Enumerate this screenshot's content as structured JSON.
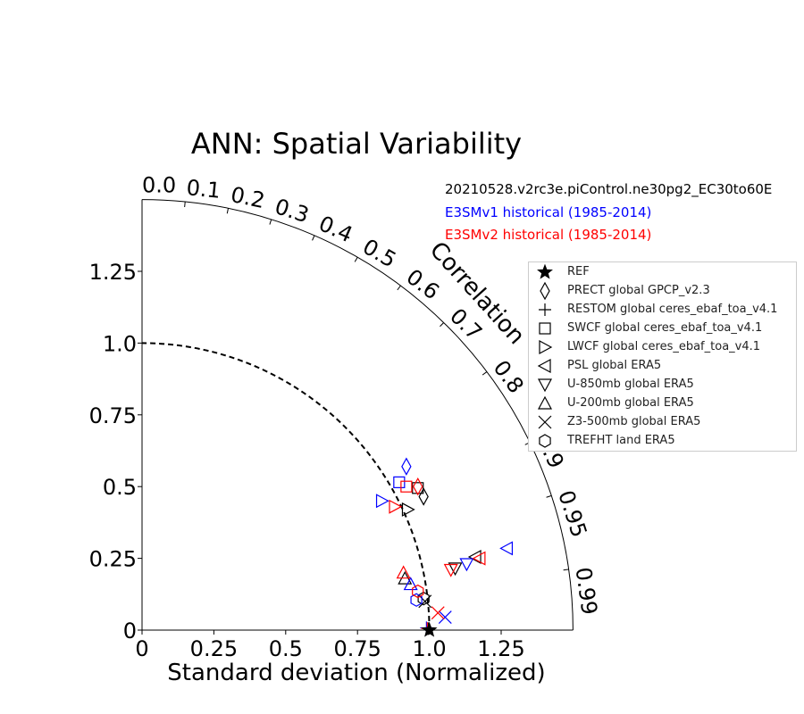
{
  "chart_data": {
    "type": "scatter",
    "subtype": "taylor-diagram",
    "title": "ANN: Spatial Variability",
    "xlabel": "Standard deviation (Normalized)",
    "correlation_label": "Correlation",
    "std_range": [
      0,
      1.5
    ],
    "std_ticks": [
      "0",
      "0.25",
      "0.5",
      "0.75",
      "1.0",
      "1.25"
    ],
    "correlation_ticks": [
      "0.0",
      "0.1",
      "0.2",
      "0.3",
      "0.4",
      "0.5",
      "0.6",
      "0.7",
      "0.8",
      "0.9",
      "0.95",
      "0.99"
    ],
    "reference_std": 1.0,
    "run_labels": [
      {
        "text": "20210528.v2rc3e.piControl.ne30pg2_EC30to60E",
        "color": "#000000"
      },
      {
        "text": "E3SMv1 historical (1985-2014)",
        "color": "#0000ff"
      },
      {
        "text": "E3SMv2 historical (1985-2014)",
        "color": "#ff0000"
      }
    ],
    "legend": [
      {
        "label": "REF",
        "marker": "star"
      },
      {
        "label": "PRECT global GPCP_v2.3",
        "marker": "diamond"
      },
      {
        "label": "RESTOM global ceres_ebaf_toa_v4.1",
        "marker": "plus"
      },
      {
        "label": "SWCF global ceres_ebaf_toa_v4.1",
        "marker": "square"
      },
      {
        "label": "LWCF global ceres_ebaf_toa_v4.1",
        "marker": "triangle-right"
      },
      {
        "label": "PSL global ERA5",
        "marker": "triangle-left"
      },
      {
        "label": "U-850mb global ERA5",
        "marker": "triangle-down"
      },
      {
        "label": "U-200mb global ERA5",
        "marker": "triangle-up"
      },
      {
        "label": "Z3-500mb global ERA5",
        "marker": "x"
      },
      {
        "label": "TREFHT land ERA5",
        "marker": "hexagon"
      }
    ],
    "series": [
      {
        "color": "#000000",
        "points": [
          {
            "variable": "PRECT global GPCP_v2.3",
            "marker": "diamond",
            "std_x": 0.98,
            "std_y": 0.465
          },
          {
            "variable": "RESTOM global ceres_ebaf_toa_v4.1",
            "marker": "plus",
            "std_x": 0.997,
            "std_y": 0.005
          },
          {
            "variable": "SWCF global ceres_ebaf_toa_v4.1",
            "marker": "square",
            "std_x": 0.96,
            "std_y": 0.495
          },
          {
            "variable": "LWCF global ceres_ebaf_toa_v4.1",
            "marker": "triangle-right",
            "std_x": 0.925,
            "std_y": 0.42
          },
          {
            "variable": "PSL global ERA5",
            "marker": "triangle-left",
            "std_x": 1.16,
            "std_y": 0.255
          },
          {
            "variable": "U-850mb global ERA5",
            "marker": "triangle-down",
            "std_x": 1.09,
            "std_y": 0.215
          },
          {
            "variable": "U-200mb global ERA5",
            "marker": "triangle-up",
            "std_x": 0.915,
            "std_y": 0.18
          },
          {
            "variable": "Z3-500mb global ERA5",
            "marker": "x",
            "std_x": 0.985,
            "std_y": 0.1
          },
          {
            "variable": "TREFHT land ERA5",
            "marker": "hexagon",
            "std_x": 0.98,
            "std_y": 0.11
          }
        ]
      },
      {
        "color": "#0000ff",
        "points": [
          {
            "variable": "PRECT global GPCP_v2.3",
            "marker": "diamond",
            "std_x": 0.92,
            "std_y": 0.57
          },
          {
            "variable": "RESTOM global ceres_ebaf_toa_v4.1",
            "marker": "plus",
            "std_x": 0.99,
            "std_y": 0.008
          },
          {
            "variable": "SWCF global ceres_ebaf_toa_v4.1",
            "marker": "square",
            "std_x": 0.895,
            "std_y": 0.515
          },
          {
            "variable": "LWCF global ceres_ebaf_toa_v4.1",
            "marker": "triangle-right",
            "std_x": 0.835,
            "std_y": 0.45
          },
          {
            "variable": "PSL global ERA5",
            "marker": "triangle-left",
            "std_x": 1.27,
            "std_y": 0.285
          },
          {
            "variable": "U-850mb global ERA5",
            "marker": "triangle-down",
            "std_x": 1.13,
            "std_y": 0.23
          },
          {
            "variable": "U-200mb global ERA5",
            "marker": "triangle-up",
            "std_x": 0.935,
            "std_y": 0.16
          },
          {
            "variable": "Z3-500mb global ERA5",
            "marker": "x",
            "std_x": 1.055,
            "std_y": 0.045
          },
          {
            "variable": "TREFHT land ERA5",
            "marker": "hexagon",
            "std_x": 0.955,
            "std_y": 0.105
          }
        ]
      },
      {
        "color": "#ff0000",
        "points": [
          {
            "variable": "PRECT global GPCP_v2.3",
            "marker": "diamond",
            "std_x": 0.96,
            "std_y": 0.5
          },
          {
            "variable": "RESTOM global ceres_ebaf_toa_v4.1",
            "marker": "plus",
            "std_x": 0.993,
            "std_y": 0.006
          },
          {
            "variable": "SWCF global ceres_ebaf_toa_v4.1",
            "marker": "square",
            "std_x": 0.92,
            "std_y": 0.5
          },
          {
            "variable": "LWCF global ceres_ebaf_toa_v4.1",
            "marker": "triangle-right",
            "std_x": 0.88,
            "std_y": 0.43
          },
          {
            "variable": "PSL global ERA5",
            "marker": "triangle-left",
            "std_x": 1.175,
            "std_y": 0.25
          },
          {
            "variable": "U-850mb global ERA5",
            "marker": "triangle-down",
            "std_x": 1.075,
            "std_y": 0.21
          },
          {
            "variable": "U-200mb global ERA5",
            "marker": "triangle-up",
            "std_x": 0.91,
            "std_y": 0.2
          },
          {
            "variable": "Z3-500mb global ERA5",
            "marker": "x",
            "std_x": 1.03,
            "std_y": 0.06
          },
          {
            "variable": "TREFHT land ERA5",
            "marker": "hexagon",
            "std_x": 0.96,
            "std_y": 0.135
          }
        ]
      }
    ],
    "reference_point": {
      "label": "REF",
      "marker": "star",
      "color": "#000000",
      "std_x": 1.0,
      "std_y": 0.0
    }
  }
}
